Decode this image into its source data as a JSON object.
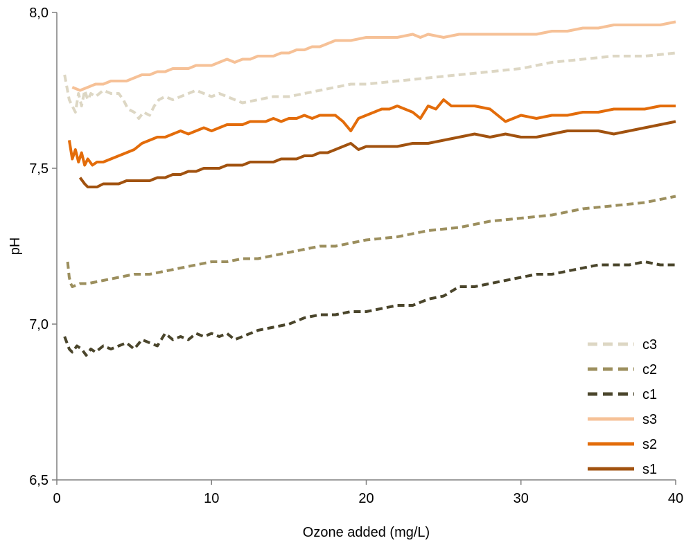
{
  "chart_data": {
    "type": "line",
    "title": "",
    "xlabel": "Ozone added (mg/L)",
    "ylabel": "pH",
    "xlim": [
      0,
      40
    ],
    "ylim": [
      6.5,
      8.0
    ],
    "x_ticks": [
      0,
      10,
      20,
      30,
      40
    ],
    "x_tick_labels": [
      "0",
      "10",
      "20",
      "30",
      "40"
    ],
    "y_ticks": [
      6.5,
      7.0,
      7.5,
      8.0
    ],
    "y_tick_labels": [
      "6,5",
      "7,0",
      "7,5",
      "8,0"
    ],
    "grid": false,
    "legend_position": "bottom-right",
    "series": [
      {
        "name": "c3",
        "color": "#ddd7c4",
        "dashed": true,
        "x": [
          0.5,
          0.8,
          1.0,
          1.2,
          1.4,
          1.6,
          1.8,
          2.0,
          2.2,
          2.5,
          3.0,
          3.5,
          4.0,
          4.3,
          4.6,
          5.0,
          5.3,
          5.6,
          6.0,
          6.3,
          6.6,
          7.0,
          7.5,
          8.0,
          8.5,
          9.0,
          9.5,
          10.0,
          10.5,
          11.0,
          11.5,
          12.0,
          13.0,
          14.0,
          15.0,
          16.0,
          17.0,
          18.0,
          19.0,
          20.0,
          22.0,
          24.0,
          26.0,
          28.0,
          30.0,
          32.0,
          34.0,
          36.0,
          38.0,
          40.0
        ],
        "y": [
          7.8,
          7.72,
          7.7,
          7.68,
          7.74,
          7.7,
          7.75,
          7.72,
          7.74,
          7.73,
          7.75,
          7.74,
          7.74,
          7.72,
          7.69,
          7.68,
          7.66,
          7.68,
          7.67,
          7.7,
          7.72,
          7.73,
          7.72,
          7.73,
          7.74,
          7.75,
          7.74,
          7.73,
          7.74,
          7.73,
          7.72,
          7.71,
          7.72,
          7.73,
          7.73,
          7.74,
          7.75,
          7.76,
          7.77,
          7.77,
          7.78,
          7.79,
          7.8,
          7.81,
          7.82,
          7.84,
          7.85,
          7.86,
          7.86,
          7.87
        ]
      },
      {
        "name": "c2",
        "color": "#9c8f5e",
        "dashed": true,
        "x": [
          0.7,
          0.8,
          0.9,
          1.0,
          1.5,
          2.0,
          3.0,
          4.0,
          5.0,
          6.0,
          7.0,
          8.0,
          9.0,
          10.0,
          11.0,
          12.0,
          13.0,
          14.0,
          15.0,
          16.0,
          17.0,
          18.0,
          19.0,
          20.0,
          22.0,
          24.0,
          26.0,
          28.0,
          30.0,
          32.0,
          34.0,
          36.0,
          38.0,
          40.0
        ],
        "y": [
          7.2,
          7.15,
          7.13,
          7.12,
          7.13,
          7.13,
          7.14,
          7.15,
          7.16,
          7.16,
          7.17,
          7.18,
          7.19,
          7.2,
          7.2,
          7.21,
          7.21,
          7.22,
          7.23,
          7.24,
          7.25,
          7.25,
          7.26,
          7.27,
          7.28,
          7.3,
          7.31,
          7.33,
          7.34,
          7.35,
          7.37,
          7.38,
          7.39,
          7.41
        ]
      },
      {
        "name": "c1",
        "color": "#4a452b",
        "dashed": true,
        "x": [
          0.5,
          0.8,
          1.0,
          1.3,
          1.6,
          1.9,
          2.2,
          2.5,
          3.0,
          3.5,
          4.0,
          4.5,
          5.0,
          5.5,
          6.0,
          6.5,
          7.0,
          7.5,
          8.0,
          8.5,
          9.0,
          9.5,
          10.0,
          10.5,
          11.0,
          11.5,
          12.0,
          12.5,
          13.0,
          14.0,
          15.0,
          16.0,
          17.0,
          18.0,
          19.0,
          20.0,
          21.0,
          22.0,
          23.0,
          24.0,
          25.0,
          26.0,
          27.0,
          28.0,
          29.0,
          30.0,
          31.0,
          32.0,
          33.0,
          34.0,
          35.0,
          36.0,
          37.0,
          38.0,
          39.0,
          40.0
        ],
        "y": [
          6.96,
          6.92,
          6.91,
          6.93,
          6.92,
          6.9,
          6.92,
          6.91,
          6.93,
          6.92,
          6.93,
          6.94,
          6.92,
          6.95,
          6.94,
          6.93,
          6.97,
          6.95,
          6.96,
          6.95,
          6.97,
          6.96,
          6.97,
          6.96,
          6.97,
          6.95,
          6.96,
          6.97,
          6.98,
          6.99,
          7.0,
          7.02,
          7.03,
          7.03,
          7.04,
          7.04,
          7.05,
          7.06,
          7.06,
          7.08,
          7.09,
          7.12,
          7.12,
          7.13,
          7.14,
          7.15,
          7.16,
          7.16,
          7.17,
          7.18,
          7.19,
          7.19,
          7.19,
          7.2,
          7.19,
          7.19
        ]
      },
      {
        "name": "s3",
        "color": "#f6c197",
        "dashed": false,
        "x": [
          1.0,
          1.5,
          2.0,
          2.5,
          3.0,
          3.5,
          4.0,
          4.5,
          5.0,
          5.5,
          6.0,
          6.5,
          7.0,
          7.5,
          8.0,
          8.5,
          9.0,
          9.5,
          10.0,
          10.5,
          11.0,
          11.5,
          12.0,
          12.5,
          13.0,
          13.5,
          14.0,
          14.5,
          15.0,
          15.5,
          16.0,
          16.5,
          17.0,
          17.5,
          18.0,
          19.0,
          20.0,
          21.0,
          22.0,
          23.0,
          23.5,
          24.0,
          25.0,
          26.0,
          27.0,
          28.0,
          29.0,
          30.0,
          31.0,
          32.0,
          33.0,
          34.0,
          35.0,
          36.0,
          37.0,
          38.0,
          39.0,
          40.0
        ],
        "y": [
          7.76,
          7.75,
          7.76,
          7.77,
          7.77,
          7.78,
          7.78,
          7.78,
          7.79,
          7.8,
          7.8,
          7.81,
          7.81,
          7.82,
          7.82,
          7.82,
          7.83,
          7.83,
          7.83,
          7.84,
          7.85,
          7.84,
          7.85,
          7.85,
          7.86,
          7.86,
          7.86,
          7.87,
          7.87,
          7.88,
          7.88,
          7.89,
          7.89,
          7.9,
          7.91,
          7.91,
          7.92,
          7.92,
          7.92,
          7.93,
          7.92,
          7.93,
          7.92,
          7.93,
          7.93,
          7.93,
          7.93,
          7.93,
          7.93,
          7.94,
          7.94,
          7.95,
          7.95,
          7.96,
          7.96,
          7.96,
          7.96,
          7.97
        ]
      },
      {
        "name": "s2",
        "color": "#e36c0a",
        "dashed": false,
        "x": [
          0.8,
          1.0,
          1.2,
          1.4,
          1.6,
          1.8,
          2.0,
          2.3,
          2.6,
          3.0,
          3.5,
          4.0,
          4.5,
          5.0,
          5.5,
          6.0,
          6.5,
          7.0,
          7.5,
          8.0,
          8.5,
          9.0,
          9.5,
          10.0,
          10.5,
          11.0,
          11.5,
          12.0,
          12.5,
          13.0,
          13.5,
          14.0,
          14.5,
          15.0,
          15.5,
          16.0,
          16.5,
          17.0,
          17.5,
          18.0,
          18.5,
          19.0,
          19.5,
          20.0,
          20.5,
          21.0,
          21.5,
          22.0,
          22.5,
          23.0,
          23.5,
          24.0,
          24.5,
          25.0,
          25.5,
          26.0,
          27.0,
          28.0,
          29.0,
          30.0,
          31.0,
          32.0,
          33.0,
          34.0,
          35.0,
          36.0,
          37.0,
          38.0,
          39.0,
          40.0
        ],
        "y": [
          7.59,
          7.53,
          7.56,
          7.52,
          7.55,
          7.51,
          7.53,
          7.51,
          7.52,
          7.52,
          7.53,
          7.54,
          7.55,
          7.56,
          7.58,
          7.59,
          7.6,
          7.6,
          7.61,
          7.62,
          7.61,
          7.62,
          7.63,
          7.62,
          7.63,
          7.64,
          7.64,
          7.64,
          7.65,
          7.65,
          7.65,
          7.66,
          7.65,
          7.66,
          7.66,
          7.67,
          7.66,
          7.67,
          7.67,
          7.67,
          7.65,
          7.62,
          7.66,
          7.67,
          7.68,
          7.69,
          7.69,
          7.7,
          7.69,
          7.68,
          7.66,
          7.7,
          7.69,
          7.72,
          7.7,
          7.7,
          7.7,
          7.69,
          7.65,
          7.67,
          7.66,
          7.67,
          7.67,
          7.68,
          7.68,
          7.69,
          7.69,
          7.69,
          7.7,
          7.7
        ]
      },
      {
        "name": "s1",
        "color": "#a1520f",
        "dashed": false,
        "x": [
          1.5,
          1.8,
          2.0,
          2.3,
          2.6,
          3.0,
          3.5,
          4.0,
          4.5,
          5.0,
          5.5,
          6.0,
          6.5,
          7.0,
          7.5,
          8.0,
          8.5,
          9.0,
          9.5,
          10.0,
          10.5,
          11.0,
          11.5,
          12.0,
          12.5,
          13.0,
          13.5,
          14.0,
          14.5,
          15.0,
          15.5,
          16.0,
          16.5,
          17.0,
          17.5,
          18.0,
          18.5,
          19.0,
          19.5,
          20.0,
          21.0,
          22.0,
          23.0,
          24.0,
          25.0,
          26.0,
          27.0,
          28.0,
          29.0,
          30.0,
          31.0,
          32.0,
          33.0,
          34.0,
          35.0,
          36.0,
          37.0,
          38.0,
          39.0,
          40.0
        ],
        "y": [
          7.47,
          7.45,
          7.44,
          7.44,
          7.44,
          7.45,
          7.45,
          7.45,
          7.46,
          7.46,
          7.46,
          7.46,
          7.47,
          7.47,
          7.48,
          7.48,
          7.49,
          7.49,
          7.5,
          7.5,
          7.5,
          7.51,
          7.51,
          7.51,
          7.52,
          7.52,
          7.52,
          7.52,
          7.53,
          7.53,
          7.53,
          7.54,
          7.54,
          7.55,
          7.55,
          7.56,
          7.57,
          7.58,
          7.56,
          7.57,
          7.57,
          7.57,
          7.58,
          7.58,
          7.59,
          7.6,
          7.61,
          7.6,
          7.61,
          7.6,
          7.6,
          7.61,
          7.62,
          7.62,
          7.62,
          7.61,
          7.62,
          7.63,
          7.64,
          7.65
        ]
      }
    ]
  }
}
